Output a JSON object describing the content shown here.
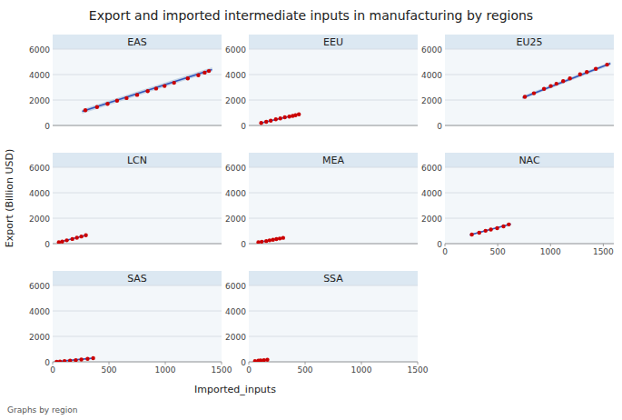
{
  "chart_data": {
    "type": "scatter",
    "title": "Export and imported intermediate inputs in manufacturing by regions",
    "x_label": "Imported_inputs",
    "y_label": "Export (Billion USD)",
    "footer": "Graphs by region",
    "grid": true,
    "panels": [
      {
        "title": "EAS",
        "xlim": [
          0,
          1600
        ],
        "ylim": [
          0,
          6000
        ],
        "xticks": [],
        "yticks": [
          0,
          2000,
          4000,
          6000
        ],
        "series": [
          {
            "type": "scatter",
            "color": "#cc0000",
            "x": [
              310,
              420,
              520,
              610,
              700,
              800,
              900,
              980,
              1060,
              1150,
              1280,
              1380,
              1440,
              1480
            ],
            "values": [
              1200,
              1450,
              1700,
              1950,
              2150,
              2400,
              2700,
              2900,
              3100,
              3350,
              3700,
              3950,
              4150,
              4280
            ]
          },
          {
            "type": "line",
            "color": "#3355bb",
            "x": [
              280,
              1510
            ],
            "values": [
              1100,
              4400
            ],
            "ci": 165
          }
        ]
      },
      {
        "title": "EEU",
        "xlim": [
          0,
          1500
        ],
        "ylim": [
          0,
          6000
        ],
        "xticks": [],
        "yticks": [
          0,
          2000,
          4000,
          6000
        ],
        "series": [
          {
            "type": "scatter",
            "color": "#cc0000",
            "x": [
              110,
              155,
              195,
              240,
              280,
              320,
              360,
              390,
              415,
              445
            ],
            "values": [
              200,
              290,
              380,
              480,
              550,
              640,
              700,
              750,
              800,
              880
            ]
          },
          {
            "type": "line",
            "color": "#3355bb",
            "x": [
              100,
              460
            ],
            "values": [
              185,
              910
            ],
            "ci": 36.25
          }
        ]
      },
      {
        "title": "EU25",
        "xlim": [
          0,
          1500
        ],
        "ylim": [
          0,
          6000
        ],
        "xticks": [],
        "yticks": [
          0,
          2000,
          4000,
          6000
        ],
        "series": [
          {
            "type": "scatter",
            "color": "#cc0000",
            "x": [
              710,
              790,
              880,
              940,
              990,
              1050,
              1110,
              1200,
              1260,
              1340,
              1440
            ],
            "values": [
              2250,
              2530,
              2880,
              3100,
              3280,
              3480,
              3700,
              4020,
              4200,
              4450,
              4780
            ]
          },
          {
            "type": "line",
            "color": "#3355bb",
            "x": [
              690,
              1470
            ],
            "values": [
              2180,
              4870
            ],
            "ci": 134.5
          }
        ]
      },
      {
        "title": "LCN",
        "xlim": [
          0,
          1500
        ],
        "ylim": [
          0,
          6000
        ],
        "xticks": [],
        "yticks": [
          0,
          2000,
          4000,
          6000
        ],
        "series": [
          {
            "type": "scatter",
            "color": "#cc0000",
            "x": [
              55,
              85,
              125,
              175,
              215,
              255,
              295
            ],
            "values": [
              110,
              165,
              260,
              365,
              465,
              560,
              660
            ]
          },
          {
            "type": "line",
            "color": "#3355bb",
            "x": [
              45,
              305
            ],
            "values": [
              95,
              675
            ],
            "ci": 29
          }
        ]
      },
      {
        "title": "MEA",
        "xlim": [
          0,
          1500
        ],
        "ylim": [
          0,
          6000
        ],
        "xticks": [],
        "yticks": [
          0,
          2000,
          4000,
          6000
        ],
        "series": [
          {
            "type": "scatter",
            "color": "#cc0000",
            "x": [
              85,
              115,
              155,
              185,
              215,
              245,
              275,
              305
            ],
            "values": [
              105,
              155,
              205,
              260,
              305,
              355,
              405,
              455
            ]
          },
          {
            "type": "line",
            "color": "#3355bb",
            "x": [
              75,
              315
            ],
            "values": [
              95,
              465
            ],
            "ci": 18.5
          }
        ]
      },
      {
        "title": "NAC",
        "xlim": [
          0,
          1600
        ],
        "ylim": [
          0,
          6000
        ],
        "xticks": [
          0,
          500,
          1000,
          1500
        ],
        "yticks": [
          0,
          2000,
          4000,
          6000
        ],
        "series": [
          {
            "type": "scatter",
            "color": "#cc0000",
            "x": [
              255,
              325,
              385,
              435,
              495,
              555,
              605
            ],
            "values": [
              710,
              860,
              1010,
              1110,
              1210,
              1360,
              1510
            ]
          },
          {
            "type": "line",
            "color": "#3355bb",
            "x": [
              235,
              625
            ],
            "values": [
              685,
              1540
            ],
            "ci": 42.75
          }
        ]
      },
      {
        "title": "SAS",
        "xlim": [
          0,
          1500
        ],
        "ylim": [
          0,
          6000
        ],
        "xticks": [
          0,
          500,
          1000,
          1500
        ],
        "yticks": [
          0,
          2000,
          4000,
          6000
        ],
        "series": [
          {
            "type": "scatter",
            "color": "#cc0000",
            "x": [
              35,
              65,
              105,
              155,
              205,
              255,
              310,
              360
            ],
            "values": [
              12,
              25,
              55,
              88,
              128,
              178,
              228,
              285
            ]
          },
          {
            "type": "line",
            "color": "#3355bb",
            "x": [
              25,
              370
            ],
            "values": [
              8,
              295
            ],
            "ci": 14.35
          }
        ]
      },
      {
        "title": "SSA",
        "xlim": [
          0,
          1500
        ],
        "ylim": [
          0,
          6000
        ],
        "xticks": [
          0,
          500,
          1000,
          1500
        ],
        "yticks": [
          0,
          2000,
          4000,
          6000
        ],
        "series": [
          {
            "type": "scatter",
            "color": "#cc0000",
            "x": [
              55,
              85,
              105,
              135,
              165
            ],
            "values": [
              65,
              85,
              105,
              135,
              162
            ]
          },
          {
            "type": "line",
            "color": "#3355bb",
            "x": [
              45,
              175
            ],
            "values": [
              55,
              168
            ],
            "ci": 5.65
          }
        ]
      }
    ]
  }
}
